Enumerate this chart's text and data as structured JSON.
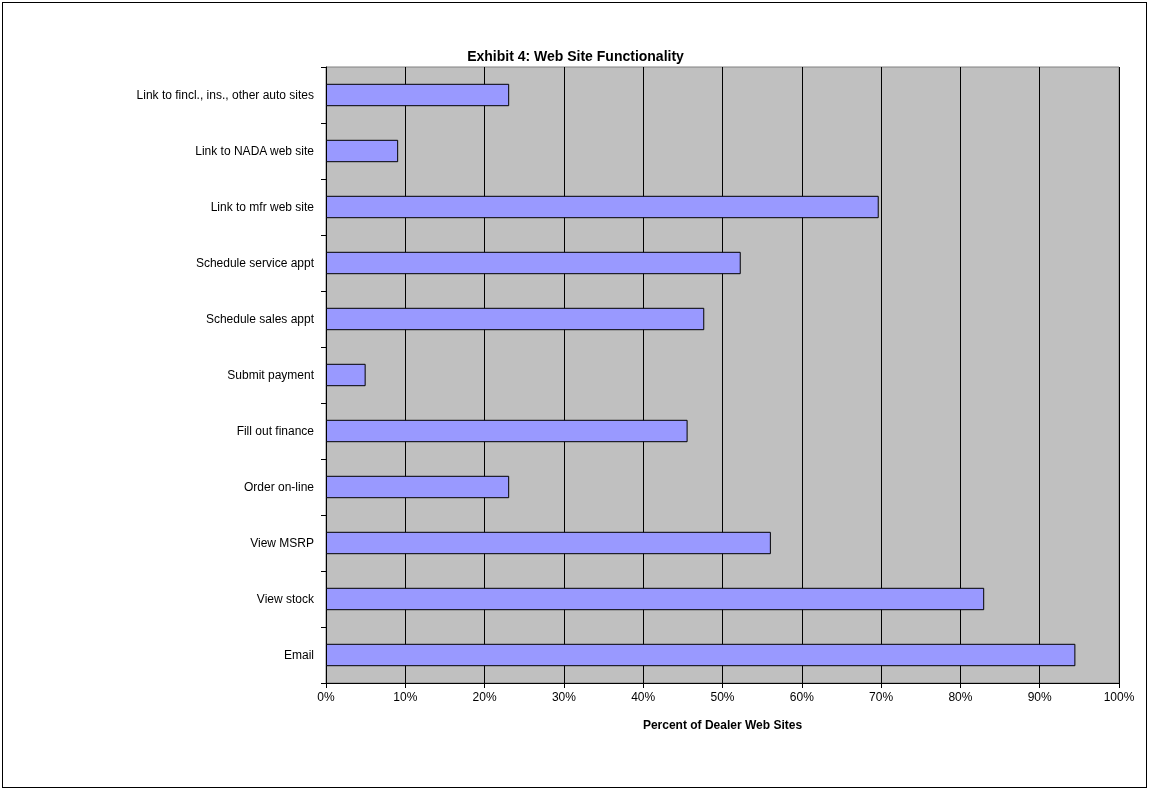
{
  "chart_data": {
    "type": "bar",
    "orientation": "horizontal",
    "title": "Exhibit 4: Web Site Functionality",
    "xlabel": "Percent of Dealer Web Sites",
    "categories": [
      "Link to fincl., ins., other auto sites",
      "Link to NADA web site",
      "Link to mfr web site",
      "Schedule service appt",
      "Schedule sales appt",
      "Submit payment",
      "Fill out finance",
      "Order on-line",
      "View MSRP",
      "View stock",
      "Email"
    ],
    "values": [
      23.1,
      9.1,
      69.7,
      52.3,
      47.7,
      5.0,
      45.6,
      23.1,
      56.1,
      83.0,
      94.5
    ],
    "color": "#9999ff",
    "xlim": [
      0,
      100
    ],
    "xticks": [
      {
        "value": 0,
        "label": "0%"
      },
      {
        "value": 10,
        "label": "10%"
      },
      {
        "value": 20,
        "label": "20%"
      },
      {
        "value": 30,
        "label": "30%"
      },
      {
        "value": 40,
        "label": "40%"
      },
      {
        "value": 50,
        "label": "50%"
      },
      {
        "value": 60,
        "label": "60%"
      },
      {
        "value": 70,
        "label": "70%"
      },
      {
        "value": 80,
        "label": "80%"
      },
      {
        "value": 90,
        "label": "90%"
      },
      {
        "value": 100,
        "label": "100%"
      }
    ],
    "grid": "x"
  }
}
